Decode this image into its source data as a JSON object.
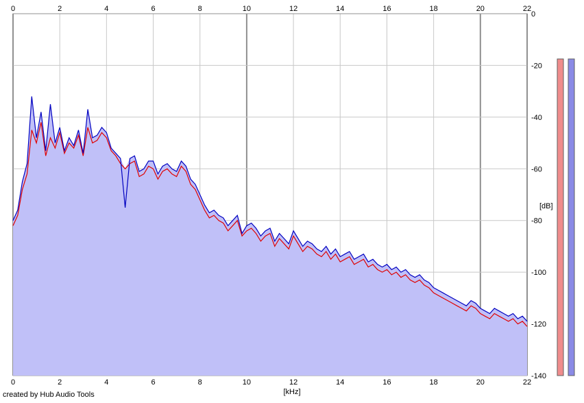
{
  "credit": "created by Hub Audio Tools",
  "colors": {
    "fill": "#c0c0f8",
    "left_channel": "#e00000",
    "right_channel": "#0000c0",
    "grid_minor": "#c8c8c8",
    "grid_major": "#909090",
    "meter_left": "#f08c8c",
    "meter_right": "#8a8ae6"
  },
  "chart_data": {
    "type": "area",
    "xlabel": "[kHz]",
    "ylabel": "[dB]",
    "xlim": [
      0,
      22
    ],
    "ylim": [
      -140,
      0
    ],
    "x_ticks": [
      "0",
      "2",
      "4",
      "6",
      "8",
      "10",
      "12",
      "14",
      "16",
      "18",
      "20",
      "22"
    ],
    "y_ticks": [
      "0",
      "-20",
      "-40",
      "-60",
      "-80",
      "-100",
      "-120",
      "-140"
    ],
    "grid": true,
    "series": [
      {
        "channel": "left",
        "color": "#e00000",
        "x": [
          0,
          0.2,
          0.4,
          0.6,
          0.8,
          1.0,
          1.2,
          1.4,
          1.6,
          1.8,
          2.0,
          2.2,
          2.4,
          2.6,
          2.8,
          3.0,
          3.2,
          3.4,
          3.6,
          3.8,
          4.0,
          4.2,
          4.4,
          4.6,
          4.8,
          5.0,
          5.2,
          5.4,
          5.6,
          5.8,
          6.0,
          6.2,
          6.4,
          6.6,
          6.8,
          7.0,
          7.2,
          7.4,
          7.6,
          7.8,
          8.0,
          8.2,
          8.4,
          8.6,
          8.8,
          9.0,
          9.2,
          9.4,
          9.6,
          9.8,
          10.0,
          10.2,
          10.4,
          10.6,
          10.8,
          11.0,
          11.2,
          11.4,
          11.6,
          11.8,
          12.0,
          12.2,
          12.4,
          12.6,
          12.8,
          13.0,
          13.2,
          13.4,
          13.6,
          13.8,
          14.0,
          14.2,
          14.4,
          14.6,
          14.8,
          15.0,
          15.2,
          15.4,
          15.6,
          15.8,
          16.0,
          16.2,
          16.4,
          16.6,
          16.8,
          17.0,
          17.2,
          17.4,
          17.6,
          17.8,
          18.0,
          18.2,
          18.4,
          18.6,
          18.8,
          19.0,
          19.2,
          19.4,
          19.6,
          19.8,
          20.0,
          20.2,
          20.4,
          20.6,
          20.8,
          21.0,
          21.2,
          21.4,
          21.6,
          21.8,
          22.0
        ],
        "y": [
          -82,
          -78,
          -68,
          -62,
          -45,
          -50,
          -42,
          -55,
          -48,
          -52,
          -46,
          -54,
          -50,
          -52,
          -47,
          -55,
          -44,
          -50,
          -49,
          -46,
          -48,
          -53,
          -55,
          -58,
          -60,
          -58,
          -57,
          -63,
          -62,
          -59,
          -60,
          -64,
          -61,
          -60,
          -62,
          -63,
          -59,
          -61,
          -66,
          -68,
          -72,
          -76,
          -79,
          -78,
          -80,
          -81,
          -84,
          -82,
          -80,
          -86,
          -84,
          -83,
          -85,
          -88,
          -86,
          -85,
          -90,
          -87,
          -89,
          -91,
          -86,
          -89,
          -92,
          -90,
          -91,
          -93,
          -94,
          -92,
          -95,
          -93,
          -96,
          -95,
          -94,
          -97,
          -96,
          -95,
          -98,
          -97,
          -99,
          -100,
          -99,
          -101,
          -100,
          -102,
          -101,
          -103,
          -104,
          -103,
          -105,
          -106,
          -108,
          -109,
          -110,
          -111,
          -112,
          -113,
          -114,
          -115,
          -113,
          -114,
          -116,
          -117,
          -118,
          -116,
          -117,
          -118,
          -119,
          -118,
          -120,
          -119,
          -121
        ]
      },
      {
        "channel": "right",
        "color": "#0000c0",
        "x": [
          0,
          0.2,
          0.4,
          0.6,
          0.8,
          1.0,
          1.2,
          1.4,
          1.6,
          1.8,
          2.0,
          2.2,
          2.4,
          2.6,
          2.8,
          3.0,
          3.2,
          3.4,
          3.6,
          3.8,
          4.0,
          4.2,
          4.4,
          4.6,
          4.8,
          5.0,
          5.2,
          5.4,
          5.6,
          5.8,
          6.0,
          6.2,
          6.4,
          6.6,
          6.8,
          7.0,
          7.2,
          7.4,
          7.6,
          7.8,
          8.0,
          8.2,
          8.4,
          8.6,
          8.8,
          9.0,
          9.2,
          9.4,
          9.6,
          9.8,
          10.0,
          10.2,
          10.4,
          10.6,
          10.8,
          11.0,
          11.2,
          11.4,
          11.6,
          11.8,
          12.0,
          12.2,
          12.4,
          12.6,
          12.8,
          13.0,
          13.2,
          13.4,
          13.6,
          13.8,
          14.0,
          14.2,
          14.4,
          14.6,
          14.8,
          15.0,
          15.2,
          15.4,
          15.6,
          15.8,
          16.0,
          16.2,
          16.4,
          16.6,
          16.8,
          17.0,
          17.2,
          17.4,
          17.6,
          17.8,
          18.0,
          18.2,
          18.4,
          18.6,
          18.8,
          19.0,
          19.2,
          19.4,
          19.6,
          19.8,
          20.0,
          20.2,
          20.4,
          20.6,
          20.8,
          21.0,
          21.2,
          21.4,
          21.6,
          21.8,
          22.0
        ],
        "y": [
          -80,
          -76,
          -65,
          -58,
          -32,
          -48,
          -38,
          -53,
          -35,
          -50,
          -44,
          -53,
          -48,
          -51,
          -45,
          -54,
          -37,
          -48,
          -47,
          -44,
          -46,
          -52,
          -54,
          -56,
          -75,
          -56,
          -55,
          -61,
          -60,
          -57,
          -57,
          -62,
          -59,
          -58,
          -60,
          -61,
          -57,
          -59,
          -64,
          -66,
          -70,
          -74,
          -77,
          -76,
          -78,
          -79,
          -82,
          -80,
          -78,
          -85,
          -82,
          -81,
          -83,
          -86,
          -84,
          -83,
          -88,
          -85,
          -87,
          -89,
          -84,
          -87,
          -90,
          -88,
          -89,
          -91,
          -92,
          -90,
          -93,
          -91,
          -94,
          -93,
          -92,
          -95,
          -94,
          -93,
          -96,
          -95,
          -97,
          -98,
          -97,
          -99,
          -98,
          -100,
          -99,
          -101,
          -102,
          -101,
          -103,
          -104,
          -106,
          -107,
          -108,
          -109,
          -110,
          -111,
          -112,
          -113,
          -111,
          -112,
          -114,
          -115,
          -116,
          -114,
          -115,
          -116,
          -117,
          -116,
          -118,
          -117,
          -119
        ]
      }
    ]
  }
}
